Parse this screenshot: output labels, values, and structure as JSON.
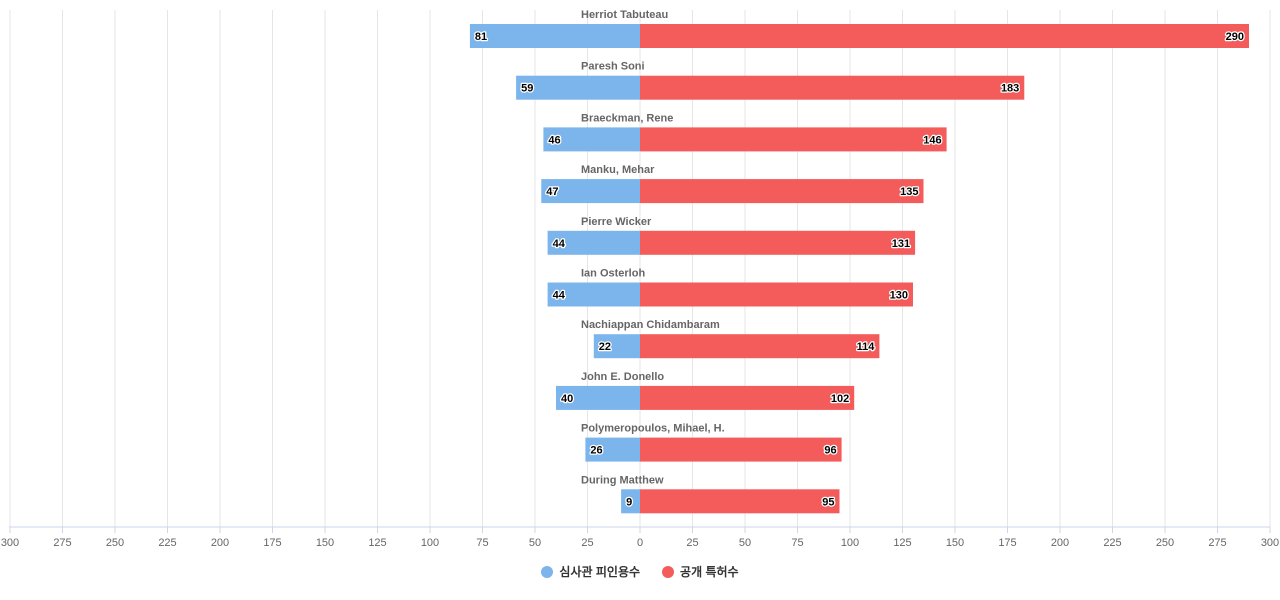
{
  "chart_data": {
    "type": "bar",
    "orientation": "horizontal-diverging",
    "categories": [
      "Herriot Tabuteau",
      "Paresh Soni",
      "Braeckman, Rene",
      "Manku, Mehar",
      "Pierre Wicker",
      "Ian Osterloh",
      "Nachiappan Chidambaram",
      "John E. Donello",
      "Polymeropoulos, Mihael, H.",
      "During Matthew"
    ],
    "series": [
      {
        "name": "심사관 피인용수",
        "side": "left",
        "color": "#7cb5ec",
        "values": [
          81,
          59,
          46,
          47,
          44,
          44,
          22,
          40,
          26,
          9
        ]
      },
      {
        "name": "공개 특허수",
        "side": "right",
        "color": "#f45b5b",
        "values": [
          290,
          183,
          146,
          135,
          131,
          130,
          114,
          102,
          96,
          95
        ]
      }
    ],
    "x_range": [
      -300,
      300
    ],
    "x_ticks": [
      "300",
      "275",
      "250",
      "225",
      "200",
      "175",
      "150",
      "125",
      "100",
      "75",
      "50",
      "25",
      "0",
      "25",
      "50",
      "75",
      "100",
      "125",
      "150",
      "175",
      "200",
      "225",
      "250",
      "275",
      "300"
    ],
    "grid": true,
    "legend_position": "bottom-center"
  }
}
